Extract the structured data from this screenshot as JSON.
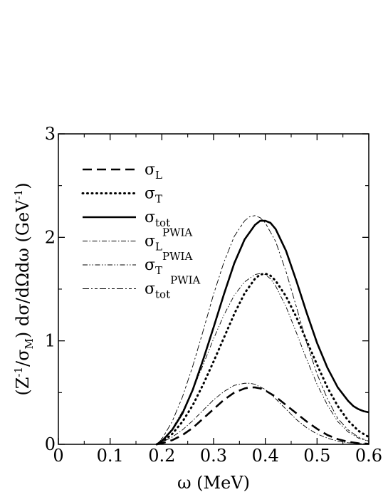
{
  "chart_data": {
    "type": "line",
    "title": "",
    "xlabel": "ω  (MeV)",
    "ylabel": {
      "prefix": "(Z",
      "sup1": "-1",
      "mid1": "/σ",
      "sub1": "M",
      "mid2": ") dσ/dΩdω  (GeV",
      "sup2": "-1",
      "suffix": ")"
    },
    "xlim": [
      0,
      0.6
    ],
    "ylim": [
      0,
      3
    ],
    "xticks": [
      "0",
      "0.1",
      "0.2",
      "0.3",
      "0.4",
      "0.5",
      "0.6"
    ],
    "yticks": [
      "0",
      "1",
      "2",
      "3"
    ],
    "grid": false,
    "legend_position": "top-left",
    "series": [
      {
        "id": "sigma_L",
        "legend": {
          "base": "σ",
          "sub": "L",
          "sup": ""
        },
        "style": "dashed",
        "x": [
          0.19,
          0.2,
          0.22,
          0.24,
          0.26,
          0.28,
          0.3,
          0.32,
          0.34,
          0.36,
          0.37,
          0.38,
          0.39,
          0.4,
          0.42,
          0.44,
          0.46,
          0.48,
          0.5,
          0.52,
          0.54,
          0.56,
          0.58,
          0.6
        ],
        "y": [
          0.0,
          0.01,
          0.04,
          0.09,
          0.16,
          0.25,
          0.34,
          0.43,
          0.5,
          0.54,
          0.55,
          0.55,
          0.54,
          0.52,
          0.46,
          0.38,
          0.3,
          0.22,
          0.15,
          0.09,
          0.05,
          0.025,
          0.01,
          0.005
        ]
      },
      {
        "id": "sigma_T",
        "legend": {
          "base": "σ",
          "sub": "T",
          "sup": ""
        },
        "style": "dotted",
        "x": [
          0.19,
          0.2,
          0.22,
          0.24,
          0.26,
          0.28,
          0.3,
          0.32,
          0.34,
          0.36,
          0.38,
          0.39,
          0.4,
          0.41,
          0.42,
          0.44,
          0.46,
          0.48,
          0.5,
          0.52,
          0.54,
          0.56,
          0.58,
          0.6
        ],
        "y": [
          0.0,
          0.02,
          0.1,
          0.22,
          0.38,
          0.58,
          0.8,
          1.03,
          1.26,
          1.46,
          1.6,
          1.64,
          1.65,
          1.63,
          1.58,
          1.43,
          1.23,
          1.0,
          0.77,
          0.55,
          0.37,
          0.23,
          0.13,
          0.07
        ]
      },
      {
        "id": "sigma_tot",
        "legend": {
          "base": "σ",
          "sub": "tot",
          "sup": ""
        },
        "style": "solid",
        "x": [
          0.19,
          0.2,
          0.22,
          0.24,
          0.26,
          0.28,
          0.3,
          0.32,
          0.34,
          0.36,
          0.38,
          0.39,
          0.4,
          0.41,
          0.42,
          0.44,
          0.46,
          0.48,
          0.5,
          0.52,
          0.54,
          0.56,
          0.57,
          0.58,
          0.59,
          0.6
        ],
        "y": [
          0.0,
          0.03,
          0.14,
          0.3,
          0.53,
          0.82,
          1.13,
          1.45,
          1.75,
          1.98,
          2.12,
          2.16,
          2.16,
          2.14,
          2.08,
          1.87,
          1.58,
          1.27,
          0.98,
          0.74,
          0.55,
          0.42,
          0.37,
          0.34,
          0.32,
          0.31
        ]
      },
      {
        "id": "sigma_L_PWIA",
        "legend": {
          "base": "σ",
          "sub": "L",
          "sup": "PWIA"
        },
        "style": "dashdot",
        "x": [
          0.19,
          0.2,
          0.22,
          0.24,
          0.26,
          0.28,
          0.3,
          0.32,
          0.34,
          0.36,
          0.37,
          0.38,
          0.4,
          0.42,
          0.44,
          0.46,
          0.48,
          0.5,
          0.52,
          0.54,
          0.56,
          0.58,
          0.6
        ],
        "y": [
          0.0,
          0.02,
          0.07,
          0.14,
          0.23,
          0.33,
          0.43,
          0.51,
          0.57,
          0.59,
          0.59,
          0.58,
          0.53,
          0.44,
          0.34,
          0.24,
          0.16,
          0.1,
          0.06,
          0.03,
          0.015,
          0.008,
          0.004
        ]
      },
      {
        "id": "sigma_T_PWIA",
        "legend": {
          "base": "σ",
          "sub": "T",
          "sup": "PWIA"
        },
        "style": "dashdotdot",
        "x": [
          0.19,
          0.2,
          0.22,
          0.24,
          0.26,
          0.28,
          0.3,
          0.32,
          0.34,
          0.36,
          0.38,
          0.39,
          0.4,
          0.41,
          0.42,
          0.44,
          0.46,
          0.48,
          0.5,
          0.52,
          0.54,
          0.56,
          0.58,
          0.6
        ],
        "y": [
          0.0,
          0.03,
          0.15,
          0.32,
          0.53,
          0.77,
          1.02,
          1.25,
          1.44,
          1.57,
          1.64,
          1.65,
          1.64,
          1.6,
          1.53,
          1.33,
          1.08,
          0.82,
          0.58,
          0.38,
          0.22,
          0.12,
          0.06,
          0.03
        ]
      },
      {
        "id": "sigma_tot_PWIA",
        "legend": {
          "base": "σ",
          "sub": "tot",
          "sup": "PWIA"
        },
        "style": "dashdotdash",
        "x": [
          0.19,
          0.2,
          0.22,
          0.24,
          0.26,
          0.28,
          0.3,
          0.32,
          0.34,
          0.36,
          0.37,
          0.38,
          0.39,
          0.4,
          0.42,
          0.44,
          0.46,
          0.48,
          0.5,
          0.52,
          0.54,
          0.56,
          0.58,
          0.6
        ],
        "y": [
          0.0,
          0.05,
          0.22,
          0.46,
          0.76,
          1.1,
          1.45,
          1.76,
          2.01,
          2.16,
          2.2,
          2.21,
          2.19,
          2.14,
          1.96,
          1.67,
          1.33,
          0.98,
          0.68,
          0.44,
          0.25,
          0.14,
          0.07,
          0.03
        ]
      }
    ]
  }
}
